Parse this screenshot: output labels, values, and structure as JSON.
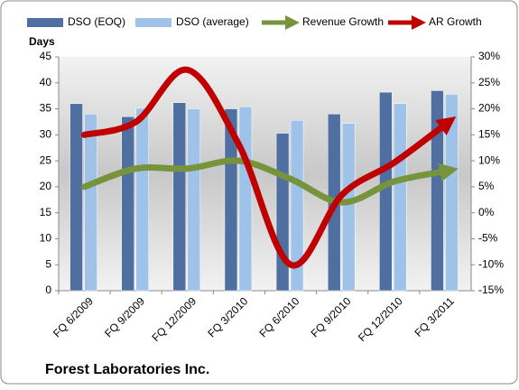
{
  "chart_data": {
    "type": "bar-line",
    "title": "Forest Laboratories Inc.",
    "y_label": "Days",
    "categories": [
      "FQ 6/2009",
      "FQ 9/2009",
      "FQ 12/2009",
      "FQ 3/2010",
      "FQ 6/2010",
      "FQ 9/2010",
      "FQ 12/2010",
      "FQ 3/2011"
    ],
    "series": [
      {
        "name": "DSO (EOQ)",
        "color": "#4f6fa0",
        "kind": "bar",
        "values": [
          36,
          33.5,
          36.2,
          35,
          30.3,
          34,
          38.2,
          38.5
        ]
      },
      {
        "name": "DSO (average)",
        "color": "#9fc2e8",
        "kind": "bar",
        "values": [
          34,
          35.1,
          35,
          35.4,
          32.8,
          32.2,
          36,
          37.8
        ]
      },
      {
        "name": "Revenue Growth",
        "color": "#77933c",
        "kind": "line",
        "axis": "y2",
        "values": [
          5,
          8.5,
          8.5,
          10,
          6.5,
          2,
          6,
          8
        ]
      },
      {
        "name": "AR Growth",
        "color": "#c00000",
        "kind": "line",
        "axis": "y2",
        "values": [
          15,
          17.5,
          27.5,
          13,
          -10,
          3.5,
          9.6,
          17
        ]
      }
    ],
    "ylim": [
      0,
      45
    ],
    "yticks": [
      0,
      5,
      10,
      15,
      20,
      25,
      30,
      35,
      40,
      45
    ],
    "y2lim": [
      -15,
      30
    ],
    "y2ticks": [
      {
        "value": -15,
        "label": "-15%"
      },
      {
        "value": -10,
        "label": "-10%"
      },
      {
        "value": -5,
        "label": "-5%"
      },
      {
        "value": 0,
        "label": "0%"
      },
      {
        "value": 5,
        "label": "5%"
      },
      {
        "value": 10,
        "label": "10%"
      },
      {
        "value": 15,
        "label": "15%"
      },
      {
        "value": 20,
        "label": "20%"
      },
      {
        "value": 25,
        "label": "25%"
      },
      {
        "value": 30,
        "label": "30%"
      }
    ],
    "grid": false
  }
}
